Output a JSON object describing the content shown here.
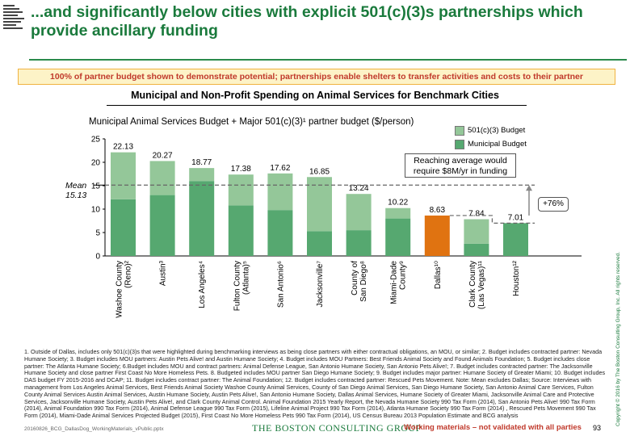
{
  "title": "...and significantly below cities with explicit 501(c)(3)s partnerships which provide ancillary funding",
  "banner": "100% of partner budget shown to demonstrate potential; partnerships enable shelters to transfer activities and costs to their partner",
  "colors": {
    "title_green": "#1a7a3c",
    "nonprofit": "#94c799",
    "municipal": "#56a870",
    "dallas": "#e07311",
    "banner_text": "#c0392b"
  },
  "chart_data": {
    "type": "bar",
    "title": "Municipal and Non-Profit Spending on Animal Services for Benchmark Cities",
    "subtitle": "Municipal Animal Services Budget + Major 501(c)(3)¹ partner budget ($/person)",
    "ylim": [
      0,
      25
    ],
    "yticks": [
      0,
      5,
      10,
      15,
      20,
      25
    ],
    "categories": [
      "Washoe County (Reno)²",
      "Austin³",
      "Los Angeles⁴",
      "Fulton County (Atlanta)⁵",
      "San Antonio⁶",
      "Jacksonville⁷",
      "County of San Diego⁸",
      "Miami-Dade County⁹",
      "Dallas¹⁰",
      "Clark County (Las Vegas)¹¹",
      "Houston¹²"
    ],
    "tick_labels": [
      [
        "Washoe County",
        "(Reno)²"
      ],
      [
        "Austin³"
      ],
      [
        "Los Angeles⁴"
      ],
      [
        "Fulton County",
        "(Atlanta)⁵"
      ],
      [
        "San Antonio⁶"
      ],
      [
        "Jacksonville⁷"
      ],
      [
        "County of",
        "San Diego⁸"
      ],
      [
        "Miami-Dade",
        "County⁹"
      ],
      [
        "Dallas¹⁰"
      ],
      [
        "Clark County",
        "(Las Vegas)¹¹"
      ],
      [
        "Houston¹²"
      ]
    ],
    "totals": [
      22.13,
      20.27,
      18.77,
      17.38,
      17.62,
      16.85,
      13.24,
      10.22,
      8.63,
      7.84,
      7.01
    ],
    "total_labels": [
      "22.13",
      "20.27",
      "18.77",
      "17.38",
      "17.62",
      "16.85",
      "13.24",
      "10.22",
      "8.63",
      "7.84",
      "7.01"
    ],
    "series": [
      {
        "name": "Municipal Budget",
        "values": [
          12.1,
          13.0,
          16.0,
          10.8,
          9.8,
          5.3,
          5.5,
          8.0,
          8.63,
          2.6,
          7.01
        ]
      },
      {
        "name": "501(c)(3) Budget",
        "values": [
          10.03,
          7.27,
          2.77,
          6.58,
          7.82,
          11.55,
          7.74,
          2.22,
          0,
          5.24,
          0
        ]
      }
    ],
    "highlight_index": 8,
    "mean": 15.13,
    "mean_label": [
      "Mean",
      "15.13"
    ],
    "legend": {
      "position": "top-right",
      "items": [
        "501(c)(3) Budget",
        "Municipal Budget"
      ]
    },
    "annotations": {
      "callout": [
        "Reaching average would",
        "require $8M/yr in funding"
      ],
      "increase": "+76%"
    }
  },
  "footnotes": "1. Outside of Dallas, includes only 501(c)(3)s that were highlighted during benchmarking interviews as being close partners with either contractual obligations, an MOU, or similar; 2. Budget includes contracted partner: Nevada Humane Society; 3. Budget includes MOU partners: Austin Pets Alive! and Austin Humane Society; 4. Budget includes MOU Partners: Best Friends Animal Society and Found Animals Foundation; 5. Budget includes close partner: The Atlanta Humane Society; 6.Budget includes MOU and contract partners: Animal Defense League, San Antonio Humane Society, San Antonio Pets Alive!; 7. Budget includes contracted partner: The Jacksonville Humane Society and close partner First Coast No More Homeless Pets. 8. Budgeted includes MOU partner San Diego Humane Society; 9. Budget includes major partner: Humane Society of Greater Miami; 10. Budget includes DAS budget FY 2015-2016 and DCAP; 11. Budget includes contract partner: The Animal Foundation; 12. Budget includes contracted partner: Rescued Pets Movement. Note: Mean excludes Dallas; Source: Interviews with management from Los Angeles Animal Services, Best Friends Animal Society Washoe County Animal Services, County of San Diego Animal Services, San Diego Humane Society, San Antonio Animal Care Services, Fulton County Animal Services Austin Animal Services, Austin Humane Society, Austin Pets Alive!, San Antonio Humane Society, Dallas Animal Services, Humane Society of Greater Miami, Jacksonville Animal Care and Protective Services, Jacksonville Humane Society, Austin Pets Alive!, and Clark County Animal Control. Animal Foundation 2015 Yearly Report, the Nevada Humane Society 990 Tax Form (2014), San Antonio Pets Alive! 990 Tax Form (2014), Animal Foundation 990 Tax Form (2014), Animal Defense League 990 Tax Form (2015), Lifeline Animal Project 990 Tax Form (2014), Atlanta Humane Society 990 Tax Form (2014) , Rescued Pets Movement 990 Tax Form (2014), Miami-Dade Animal Services Projected Budget (2015), First Coast No More Homeless Pets 990 Tax Form (2014), US Census Bureau 2013 Population Estimate and BCG analysis",
  "footer": {
    "file": "20160826_BCG_DallasDog_WorkingMaterials_vPublic.pptx",
    "company": "THE BOSTON CONSULTING GROUP",
    "status": "Working materials – not validated with all parties",
    "page": "93",
    "copyright": "Copyright © 2016 by The Boston Consulting Group, Inc. All rights reserved."
  }
}
